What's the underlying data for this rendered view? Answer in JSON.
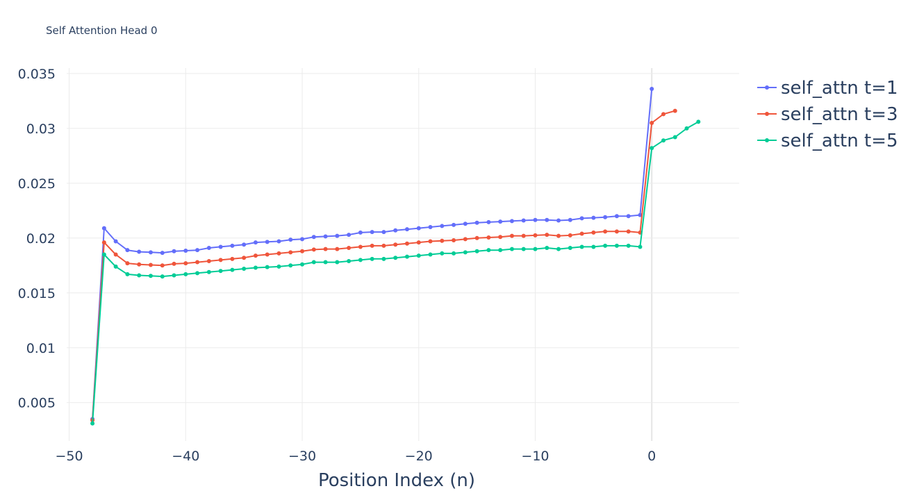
{
  "chart_data": {
    "type": "line",
    "title": "Self Attention Head 0",
    "xlabel": "Position Index (n)",
    "ylabel": "",
    "xlim": [
      -52,
      7.5
    ],
    "ylim": [
      0.0015,
      0.0355
    ],
    "x_ticks": [
      -50,
      -40,
      -30,
      -20,
      -10,
      0
    ],
    "x_tick_labels": [
      "−50",
      "−40",
      "−30",
      "−20",
      "−10",
      "0"
    ],
    "y_ticks": [
      0.005,
      0.01,
      0.015,
      0.02,
      0.025,
      0.03,
      0.035
    ],
    "y_tick_labels": [
      "0.005",
      "0.01",
      "0.015",
      "0.02",
      "0.025",
      "0.03",
      "0.035"
    ],
    "grid": true,
    "legend_position": "top-right",
    "series": [
      {
        "name": "self_attn t=1",
        "color": "#636efa",
        "x": [
          -48,
          -47,
          -46,
          -45,
          -44,
          -43,
          -42,
          -41,
          -40,
          -39,
          -38,
          -37,
          -36,
          -35,
          -34,
          -33,
          -32,
          -31,
          -30,
          -29,
          -28,
          -27,
          -26,
          -25,
          -24,
          -23,
          -22,
          -21,
          -20,
          -19,
          -18,
          -17,
          -16,
          -15,
          -14,
          -13,
          -12,
          -11,
          -10,
          -9,
          -8,
          -7,
          -6,
          -5,
          -4,
          -3,
          -2,
          -1,
          0
        ],
        "values": [
          0.0035,
          0.0209,
          0.0197,
          0.0189,
          0.01875,
          0.0187,
          0.01865,
          0.0188,
          0.01885,
          0.0189,
          0.0191,
          0.0192,
          0.0193,
          0.0194,
          0.0196,
          0.01965,
          0.0197,
          0.01985,
          0.0199,
          0.0201,
          0.02015,
          0.0202,
          0.0203,
          0.0205,
          0.02055,
          0.02055,
          0.0207,
          0.0208,
          0.0209,
          0.021,
          0.0211,
          0.0212,
          0.0213,
          0.0214,
          0.02145,
          0.0215,
          0.02155,
          0.0216,
          0.02165,
          0.02165,
          0.0216,
          0.02165,
          0.0218,
          0.02185,
          0.0219,
          0.022,
          0.022,
          0.0221,
          0.0336
        ]
      },
      {
        "name": "self_attn t=3",
        "color": "#ef553b",
        "x": [
          -48,
          -47,
          -46,
          -45,
          -44,
          -43,
          -42,
          -41,
          -40,
          -39,
          -38,
          -37,
          -36,
          -35,
          -34,
          -33,
          -32,
          -31,
          -30,
          -29,
          -28,
          -27,
          -26,
          -25,
          -24,
          -23,
          -22,
          -21,
          -20,
          -19,
          -18,
          -17,
          -16,
          -15,
          -14,
          -13,
          -12,
          -11,
          -10,
          -9,
          -8,
          -7,
          -6,
          -5,
          -4,
          -3,
          -2,
          -1,
          0,
          1,
          2
        ],
        "values": [
          0.0034,
          0.0196,
          0.0185,
          0.0177,
          0.0176,
          0.01755,
          0.0175,
          0.01765,
          0.0177,
          0.0178,
          0.0179,
          0.018,
          0.0181,
          0.0182,
          0.0184,
          0.0185,
          0.0186,
          0.0187,
          0.0188,
          0.01895,
          0.019,
          0.019,
          0.0191,
          0.0192,
          0.0193,
          0.0193,
          0.0194,
          0.0195,
          0.0196,
          0.0197,
          0.01975,
          0.0198,
          0.0199,
          0.02,
          0.02005,
          0.0201,
          0.0202,
          0.0202,
          0.02025,
          0.0203,
          0.0202,
          0.02025,
          0.0204,
          0.0205,
          0.0206,
          0.0206,
          0.0206,
          0.0205,
          0.0305,
          0.0313,
          0.0316
        ]
      },
      {
        "name": "self_attn t=5",
        "color": "#00cc96",
        "x": [
          -48,
          -47,
          -46,
          -45,
          -44,
          -43,
          -42,
          -41,
          -40,
          -39,
          -38,
          -37,
          -36,
          -35,
          -34,
          -33,
          -32,
          -31,
          -30,
          -29,
          -28,
          -27,
          -26,
          -25,
          -24,
          -23,
          -22,
          -21,
          -20,
          -19,
          -18,
          -17,
          -16,
          -15,
          -14,
          -13,
          -12,
          -11,
          -10,
          -9,
          -8,
          -7,
          -6,
          -5,
          -4,
          -3,
          -2,
          -1,
          0,
          1,
          2,
          3,
          4
        ],
        "values": [
          0.0031,
          0.0185,
          0.0174,
          0.0167,
          0.0166,
          0.01655,
          0.0165,
          0.0166,
          0.0167,
          0.0168,
          0.0169,
          0.017,
          0.0171,
          0.0172,
          0.0173,
          0.01735,
          0.0174,
          0.0175,
          0.0176,
          0.0178,
          0.0178,
          0.0178,
          0.0179,
          0.018,
          0.0181,
          0.0181,
          0.0182,
          0.0183,
          0.0184,
          0.0185,
          0.0186,
          0.0186,
          0.0187,
          0.0188,
          0.0189,
          0.0189,
          0.019,
          0.019,
          0.019,
          0.0191,
          0.019,
          0.0191,
          0.0192,
          0.0192,
          0.0193,
          0.0193,
          0.0193,
          0.0192,
          0.0282,
          0.0289,
          0.0292,
          0.03,
          0.0306
        ]
      }
    ]
  }
}
